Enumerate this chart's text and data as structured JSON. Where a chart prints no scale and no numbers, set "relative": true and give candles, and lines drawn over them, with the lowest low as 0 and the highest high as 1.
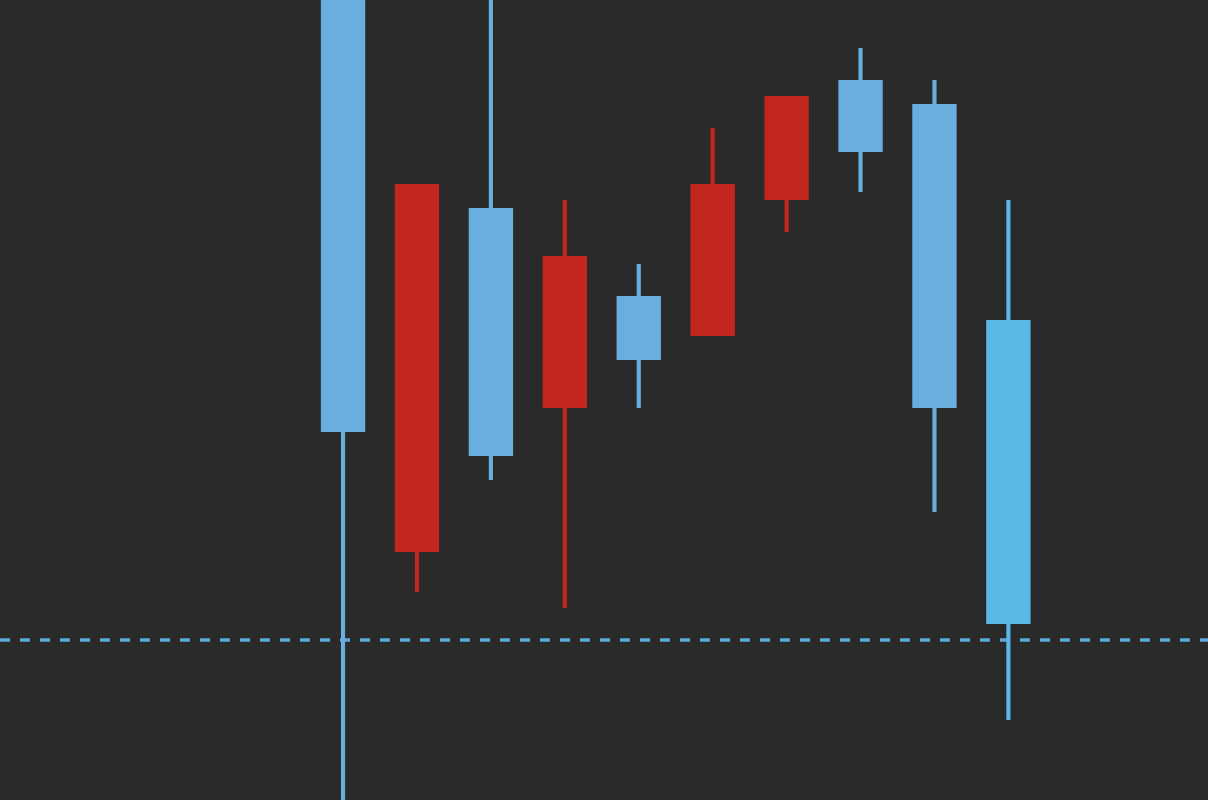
{
  "chart_data": {
    "type": "candlestick",
    "relative": true,
    "categories": [
      null,
      null,
      null,
      null,
      null,
      null,
      null,
      null,
      null,
      null
    ],
    "ohlc": [
      [
        0.46,
        1.0,
        0.0,
        1.0
      ],
      [
        0.77,
        0.77,
        0.26,
        0.31
      ],
      [
        0.43,
        1.0,
        0.4,
        0.74
      ],
      [
        0.68,
        0.75,
        0.24,
        0.49
      ],
      [
        0.55,
        0.67,
        0.49,
        0.63
      ],
      [
        0.77,
        0.84,
        0.58,
        0.58
      ],
      [
        0.88,
        0.88,
        0.71,
        0.75
      ],
      [
        0.81,
        0.94,
        0.76,
        0.9
      ],
      [
        0.49,
        0.9,
        0.36,
        0.87
      ],
      [
        0.22,
        0.75,
        0.1,
        0.6
      ]
    ],
    "colors": [
      "#6aaee0",
      "#c3261f",
      "#6aaee0",
      "#c3261f",
      "#6aaee0",
      "#c3261f",
      "#c3261f",
      "#6aaee0",
      "#6aaee0",
      "#5ab8e6"
    ],
    "ref_lines": [
      {
        "axis": "y",
        "value": 0.2,
        "color": "#5aa9d6",
        "line_style": "dashed"
      }
    ],
    "legend": false
  }
}
